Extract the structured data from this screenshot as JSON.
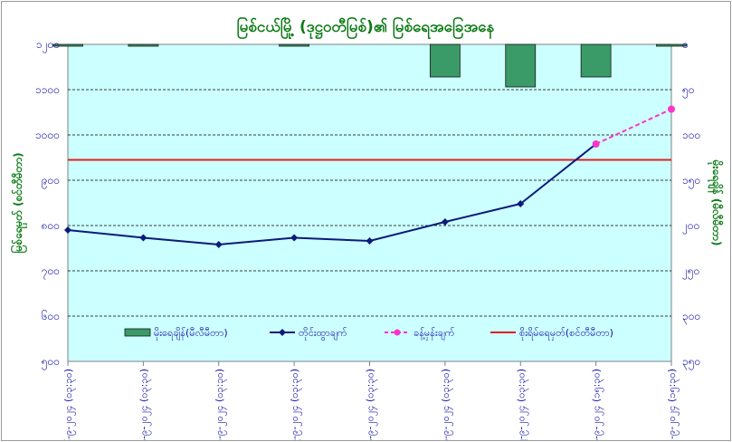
{
  "chart_data": {
    "type": "bar+line",
    "title": "မြစ်ငယ်မြို့ (ဒုဋ္ဌဝတီမြစ်)၏ မြစ်ရေအခြေအနေ",
    "ylabel_left": "မြစ်ရေမှတ် (စင်တီမီတာ)",
    "ylabel_right": "မိုးရေချိန် (မီလီမီတာ)",
    "categories": [
      "၆-၉-၂၀၂၄ (၀၃:၃၀)",
      "၇-၉-၂၀၂၄ (၀၃:၃၀)",
      "၈-၉-၂၀၂၄ (၀၃:၃၀)",
      "၉-၉-၂၀၂၄ (၀၃:၃၀)",
      "၁၀-၉-၂၀၂၄ (၀၃:၃၀)",
      "၁၁-၉-၂၀၂၄ (၀၃:၃၀)",
      "၁၂-၉-၂၀၂၄ (၀၃:၃၀)",
      "၁၃-၉-၂၀၂၄ (၁၅:၃၀)",
      "၁၄-၉-၂၀၂၄ (၁၅:၃၀)"
    ],
    "ylim_left": [
      500,
      1200
    ],
    "yticks_left": [
      "၅၀၀",
      "၆၀၀",
      "၇၀၀",
      "၈၀၀",
      "၉၀၀",
      "၁၀၀၀",
      "၁၁၀၀",
      "၁၂၀၀"
    ],
    "yticks_left_values": [
      500,
      600,
      700,
      800,
      900,
      1000,
      1100,
      1200
    ],
    "ylim_right_inverted": [
      0,
      350
    ],
    "yticks_right": [
      "၀",
      "၅၀",
      "၁၀၀",
      "၁၅၀",
      "၂၀၀",
      "၂၅၀",
      "၃၀၀",
      "၃၅၀"
    ],
    "yticks_right_values": [
      0,
      50,
      100,
      150,
      200,
      250,
      300,
      350
    ],
    "series": [
      {
        "name": "မိုးရေချိန်(မီလီမီတာ)",
        "type": "bar",
        "axis": "right",
        "values": [
          2,
          2,
          0,
          2,
          0,
          36,
          47,
          36,
          2
        ],
        "color": "#3a9a68"
      },
      {
        "name": "တိုင်းထွာချက်",
        "type": "line",
        "axis": "left",
        "values": [
          790,
          773,
          758,
          773,
          766,
          808,
          848,
          null,
          null
        ],
        "color": "#0c1a7a"
      },
      {
        "name": "ခန့်မှန်းချက်",
        "type": "line-dashed",
        "axis": "left",
        "values": [
          null,
          null,
          null,
          null,
          null,
          null,
          null,
          980,
          1057
        ],
        "color": "#ff33cc"
      },
      {
        "name": "စိုးရိမ်ရေမှတ်(စင်တီမီတာ)",
        "type": "hline",
        "axis": "left",
        "value": 945,
        "color": "#e02020"
      }
    ],
    "grid": "horizontal-dashed",
    "legend_position": "bottom-inside"
  }
}
